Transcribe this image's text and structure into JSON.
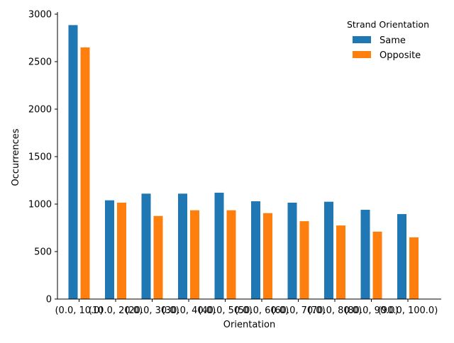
{
  "chart_data": {
    "type": "bar",
    "title": "",
    "xlabel": "Orientation",
    "ylabel": "Occurrences",
    "ylim": [
      0,
      3000
    ],
    "yticks": [
      0,
      500,
      1000,
      1500,
      2000,
      2500,
      3000
    ],
    "grid": false,
    "legend_position": "top-right",
    "legend_title": "Strand Orientation",
    "categories": [
      "(0.0, 10.0)",
      "(10.0, 20.0)",
      "(20.0, 30.0)",
      "(30.0, 40.0)",
      "(40.0, 50.0)",
      "(50.0, 60.0)",
      "(60.0, 70.0)",
      "(70.0, 80.0)",
      "(80.0, 90.0)",
      "(90.0, 100.0)"
    ],
    "series": [
      {
        "name": "Same",
        "color": "#1f77b4",
        "values": [
          2885,
          1040,
          1110,
          1110,
          1120,
          1030,
          1015,
          1025,
          940,
          895
        ]
      },
      {
        "name": "Opposite",
        "color": "#ff7f0e",
        "values": [
          2650,
          1015,
          875,
          935,
          935,
          905,
          820,
          775,
          710,
          650
        ]
      }
    ]
  }
}
